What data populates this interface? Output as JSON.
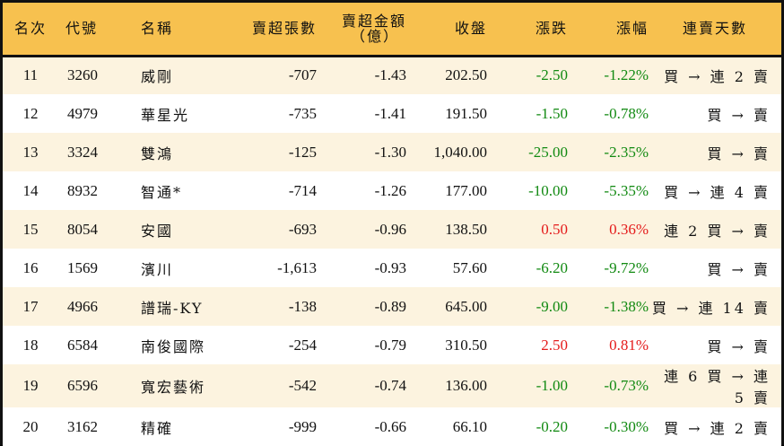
{
  "colors": {
    "header_bg": "#F7C14F",
    "row_alt_bg": "#FCF3DF",
    "row_bg": "#FFFFFF",
    "negative": "#128A12",
    "positive": "#E41B1B",
    "border": "#111111"
  },
  "table": {
    "headers": {
      "rank": "名次",
      "code": "代號",
      "name": "名稱",
      "net_sell_lots": "賣超張數",
      "net_sell_amount_line1": "賣超金額",
      "net_sell_amount_line2": "（億）",
      "close": "收盤",
      "change": "漲跌",
      "change_pct": "漲幅",
      "streak": "連賣天數"
    },
    "rows": [
      {
        "rank": "11",
        "code": "3260",
        "name": "威剛",
        "net_sell_lots": "-707",
        "net_sell_amount": "-1.43",
        "close": "202.50",
        "change": "-2.50",
        "change_pct": "-1.22%",
        "direction": "neg",
        "streak": "買 → 連 2 賣"
      },
      {
        "rank": "12",
        "code": "4979",
        "name": "華星光",
        "net_sell_lots": "-735",
        "net_sell_amount": "-1.41",
        "close": "191.50",
        "change": "-1.50",
        "change_pct": "-0.78%",
        "direction": "neg",
        "streak": "買 → 賣"
      },
      {
        "rank": "13",
        "code": "3324",
        "name": "雙鴻",
        "net_sell_lots": "-125",
        "net_sell_amount": "-1.30",
        "close": "1,040.00",
        "change": "-25.00",
        "change_pct": "-2.35%",
        "direction": "neg",
        "streak": "買 → 賣"
      },
      {
        "rank": "14",
        "code": "8932",
        "name": "智通*",
        "net_sell_lots": "-714",
        "net_sell_amount": "-1.26",
        "close": "177.00",
        "change": "-10.00",
        "change_pct": "-5.35%",
        "direction": "neg",
        "streak": "買 → 連 4 賣"
      },
      {
        "rank": "15",
        "code": "8054",
        "name": "安國",
        "net_sell_lots": "-693",
        "net_sell_amount": "-0.96",
        "close": "138.50",
        "change": "0.50",
        "change_pct": "0.36%",
        "direction": "pos",
        "streak": "連 2 買 → 賣"
      },
      {
        "rank": "16",
        "code": "1569",
        "name": "濱川",
        "net_sell_lots": "-1,613",
        "net_sell_amount": "-0.93",
        "close": "57.60",
        "change": "-6.20",
        "change_pct": "-9.72%",
        "direction": "neg",
        "streak": "買 → 賣"
      },
      {
        "rank": "17",
        "code": "4966",
        "name": "譜瑞-KY",
        "net_sell_lots": "-138",
        "net_sell_amount": "-0.89",
        "close": "645.00",
        "change": "-9.00",
        "change_pct": "-1.38%",
        "direction": "neg",
        "streak": "買 → 連 14 賣"
      },
      {
        "rank": "18",
        "code": "6584",
        "name": "南俊國際",
        "net_sell_lots": "-254",
        "net_sell_amount": "-0.79",
        "close": "310.50",
        "change": "2.50",
        "change_pct": "0.81%",
        "direction": "pos",
        "streak": "買 → 賣"
      },
      {
        "rank": "19",
        "code": "6596",
        "name": "寬宏藝術",
        "net_sell_lots": "-542",
        "net_sell_amount": "-0.74",
        "close": "136.00",
        "change": "-1.00",
        "change_pct": "-0.73%",
        "direction": "neg",
        "streak": "連 6 買 → 連 5 賣"
      },
      {
        "rank": "20",
        "code": "3162",
        "name": "精確",
        "net_sell_lots": "-999",
        "net_sell_amount": "-0.66",
        "close": "66.10",
        "change": "-0.20",
        "change_pct": "-0.30%",
        "direction": "neg",
        "streak": "買 → 連 2 賣"
      }
    ]
  }
}
